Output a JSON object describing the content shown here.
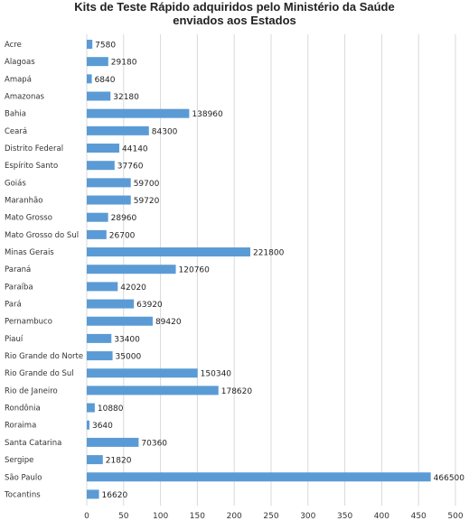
{
  "chart_data": {
    "type": "bar",
    "orientation": "horizontal",
    "title_lines": [
      "Kits de Teste Rápido adquiridos pelo Ministério da Saúde",
      "enviados aos Estados"
    ],
    "categories": [
      "Acre",
      "Alagoas",
      "Amapá",
      "Amazonas",
      "Bahia",
      "Ceará",
      "Distrito Federal",
      "Espírito Santo",
      "Goiás",
      "Maranhão",
      "Mato Grosso",
      "Mato Grosso do Sul",
      "Minas Gerais",
      "Paraná",
      "Paraíba",
      "Pará",
      "Pernambuco",
      "Piauí",
      "Rio Grande do Norte",
      "Rio Grande do Sul",
      "Rio de Janeiro",
      "Rondônia",
      "Roraima",
      "Santa Catarina",
      "Sergipe",
      "São Paulo",
      "Tocantins"
    ],
    "values": [
      7580,
      29180,
      6840,
      32180,
      138960,
      84300,
      44140,
      37760,
      59700,
      59720,
      28960,
      26700,
      221800,
      120760,
      42020,
      63920,
      89420,
      33400,
      35000,
      150340,
      178620,
      10880,
      3640,
      70360,
      21820,
      466500,
      16620
    ],
    "value_labels": [
      "7580",
      "29180",
      "6840",
      "32180",
      "138960",
      "84300",
      "44140",
      "37760",
      "59700",
      "59720",
      "28960",
      "26700",
      "221800",
      "120760",
      "42020",
      "63920",
      "89420",
      "33400",
      "35000",
      "150340",
      "178620",
      "10880",
      "3640",
      "70360",
      "21820",
      "466500",
      "16620"
    ],
    "xticks": [
      "0",
      "50",
      "100",
      "150",
      "200",
      "250",
      "300",
      "350",
      "400",
      "450",
      "500"
    ],
    "xtick_scale": 1000,
    "xlim": [
      0,
      500000
    ],
    "grid": "vertical",
    "legend": "none",
    "bar_color": "#5b9bd5",
    "grid_color": "#d9d9d9"
  }
}
